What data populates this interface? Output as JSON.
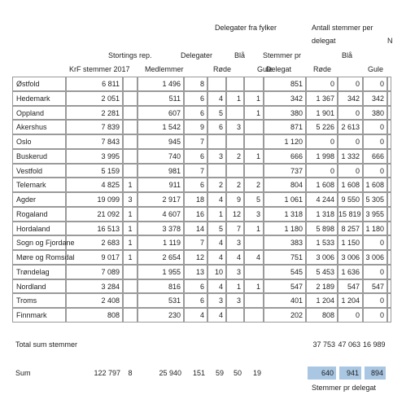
{
  "headers": [
    "Delegater fra fylker",
    "Antall stemmer per",
    "N",
    "delegat",
    "Stortings rep.",
    "Delegater",
    "Blå",
    "Stemmer pr",
    "Blå",
    "KrF stemmer 2017",
    "Medlemmer",
    "Røde",
    "Gule",
    "Delegat",
    "Røde",
    "Gule"
  ],
  "rows": [
    {
      "name": "Østfold",
      "cells": [
        "6 811",
        null,
        "1 496",
        "8",
        null,
        null,
        null,
        "851",
        "0",
        "0",
        "0"
      ]
    },
    {
      "name": "Hedemark",
      "cells": [
        "2 051",
        null,
        "511",
        "6",
        "4",
        "1",
        "1",
        "342",
        "1 367",
        "342",
        "342"
      ]
    },
    {
      "name": "Oppland",
      "cells": [
        "2 281",
        null,
        "607",
        "6",
        "5",
        null,
        "1",
        "380",
        "1 901",
        "0",
        "380"
      ]
    },
    {
      "name": "Akershus",
      "cells": [
        "7 839",
        null,
        "1 542",
        "9",
        "6",
        "3",
        null,
        "871",
        "5 226",
        "2 613",
        "0"
      ]
    },
    {
      "name": "Oslo",
      "cells": [
        "7 843",
        null,
        "945",
        "7",
        null,
        null,
        null,
        "1 120",
        "0",
        "0",
        "0"
      ]
    },
    {
      "name": "Buskerud",
      "cells": [
        "3 995",
        null,
        "740",
        "6",
        "3",
        "2",
        "1",
        "666",
        "1 998",
        "1 332",
        "666"
      ]
    },
    {
      "name": "Vestfold",
      "cells": [
        "5 159",
        null,
        "981",
        "7",
        null,
        null,
        null,
        "737",
        "0",
        "0",
        "0"
      ]
    },
    {
      "name": "Telemark",
      "cells": [
        "4 825",
        "1",
        "911",
        "6",
        "2",
        "2",
        "2",
        "804",
        "1 608",
        "1 608",
        "1 608"
      ]
    },
    {
      "name": "Agder",
      "cells": [
        "19 099",
        "3",
        "2 917",
        "18",
        "4",
        "9",
        "5",
        "1 061",
        "4 244",
        "9 550",
        "5 305"
      ]
    },
    {
      "name": "Rogaland",
      "cells": [
        "21 092",
        "1",
        "4 607",
        "16",
        "1",
        "12",
        "3",
        "1 318",
        "1 318",
        "15 819",
        "3 955"
      ]
    },
    {
      "name": "Hordaland",
      "cells": [
        "16 513",
        "1",
        "3 378",
        "14",
        "5",
        "7",
        "1",
        "1 180",
        "5 898",
        "8 257",
        "1 180"
      ]
    },
    {
      "name": "Sogn og Fjordane",
      "cells": [
        "2 683",
        "1",
        "1 119",
        "7",
        "4",
        "3",
        null,
        "383",
        "1 533",
        "1 150",
        "0"
      ]
    },
    {
      "name": "Møre og Romsdal",
      "cells": [
        "9 017",
        "1",
        "2 654",
        "12",
        "4",
        "4",
        "4",
        "751",
        "3 006",
        "3 006",
        "3 006"
      ]
    },
    {
      "name": "Trøndelag",
      "cells": [
        "7 089",
        null,
        "1 955",
        "13",
        "10",
        "3",
        null,
        "545",
        "5 453",
        "1 636",
        "0"
      ]
    },
    {
      "name": "Nordland",
      "cells": [
        "3 284",
        null,
        "816",
        "6",
        "4",
        "1",
        "1",
        "547",
        "2 189",
        "547",
        "547"
      ]
    },
    {
      "name": "Troms",
      "cells": [
        "2 408",
        null,
        "531",
        "6",
        "3",
        "3",
        null,
        "401",
        "1 204",
        "1 204",
        "0"
      ]
    },
    {
      "name": "Finnmark",
      "cells": [
        "808",
        null,
        "230",
        "4",
        "4",
        null,
        null,
        "202",
        "808",
        "0",
        "0"
      ]
    }
  ],
  "total_row": {
    "label": "Total sum stemmer",
    "cells": [
      "37 753",
      "47 063",
      "16 989"
    ]
  },
  "sum_row": {
    "label": "Sum",
    "cells": [
      "122 797",
      "8",
      "25 940",
      "151",
      "59",
      "50",
      "19"
    ],
    "per_delegate": [
      "640",
      "941",
      "894"
    ],
    "note": "Stemmer pr delegat"
  }
}
